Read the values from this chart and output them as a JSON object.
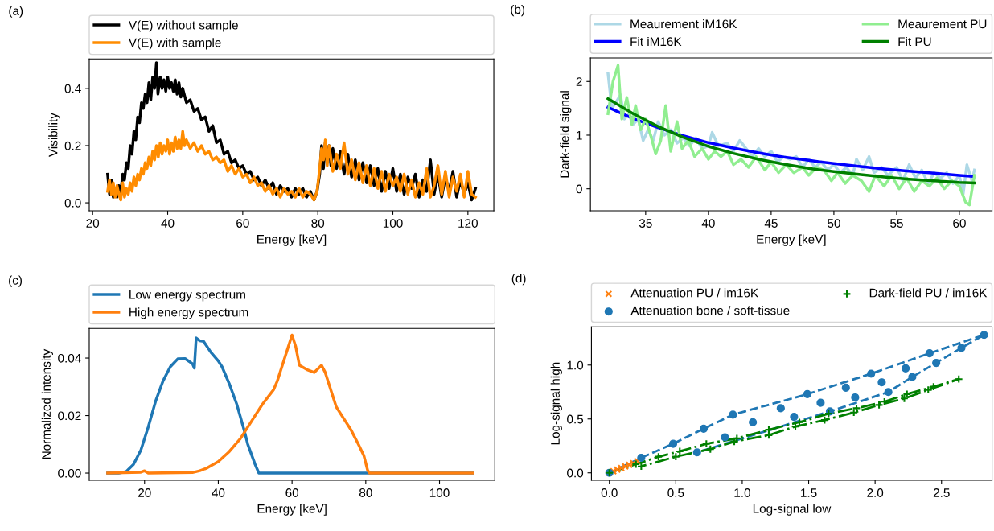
{
  "chart_data": [
    {
      "type": "line",
      "xlabel": "Energy [keV]",
      "ylabel": "Visibility",
      "annotations": [
        "(a)"
      ],
      "legend": "top",
      "grid": false,
      "xlim": [
        19.1,
        126.9
      ],
      "ylim": [
        -0.028,
        0.503
      ],
      "xticks": [
        20,
        40,
        60,
        80,
        100,
        120
      ],
      "yticks": [
        {
          "value": 0,
          "label": "0.0"
        },
        {
          "value": 0.2,
          "label": "0.2"
        },
        {
          "value": 0.4,
          "label": "0.4"
        }
      ],
      "series": [
        {
          "name": "V(E) without sample",
          "color": "#000000",
          "x": [
            24,
            24.5,
            25,
            25.5,
            26,
            26.5,
            27,
            27.5,
            28,
            28.5,
            29,
            29.5,
            30,
            30.5,
            31,
            31.5,
            32,
            32.5,
            33,
            33.5,
            34,
            34.5,
            35,
            35.5,
            36,
            36.5,
            37,
            37.4,
            38,
            38.5,
            39,
            39.5,
            40,
            40.5,
            41,
            41.5,
            42,
            42.5,
            43,
            43.5,
            44,
            45,
            46,
            47,
            48,
            49,
            50,
            51,
            52,
            53,
            54,
            55,
            56,
            57,
            58,
            59,
            60,
            61,
            62,
            63,
            64,
            65,
            66,
            67,
            68,
            69,
            70,
            71,
            72,
            73,
            74,
            75,
            76,
            77,
            78,
            79,
            79.8,
            80.5,
            81,
            81.5,
            82,
            82.5,
            83,
            83.5,
            84,
            85,
            86,
            87,
            88,
            89,
            90,
            91,
            92,
            93,
            94,
            95,
            96,
            97,
            98,
            99,
            100,
            101,
            102,
            103,
            104,
            105,
            106,
            107,
            108,
            109,
            110,
            111,
            112,
            113,
            114,
            115,
            116,
            117,
            118,
            119,
            120,
            121,
            122
          ],
          "values": [
            0.1,
            0.03,
            0.08,
            0.02,
            0.05,
            0.02,
            0.06,
            0.03,
            0.1,
            0.08,
            0.14,
            0.12,
            0.2,
            0.17,
            0.25,
            0.22,
            0.3,
            0.28,
            0.35,
            0.33,
            0.38,
            0.35,
            0.42,
            0.36,
            0.44,
            0.4,
            0.49,
            0.38,
            0.44,
            0.4,
            0.43,
            0.39,
            0.44,
            0.4,
            0.42,
            0.39,
            0.43,
            0.38,
            0.42,
            0.37,
            0.4,
            0.35,
            0.36,
            0.32,
            0.33,
            0.29,
            0.3,
            0.25,
            0.27,
            0.21,
            0.22,
            0.17,
            0.18,
            0.14,
            0.15,
            0.12,
            0.13,
            0.1,
            0.11,
            0.08,
            0.09,
            0.06,
            0.08,
            0.05,
            0.07,
            0.03,
            0.06,
            0.04,
            0.05,
            0.02,
            0.05,
            0.03,
            0.05,
            0.02,
            0.04,
            0.01,
            0.04,
            0.1,
            0.2,
            0.12,
            0.21,
            0.14,
            0.2,
            0.13,
            0.19,
            0.12,
            0.18,
            0.1,
            0.17,
            0.09,
            0.15,
            0.08,
            0.14,
            0.07,
            0.13,
            0.06,
            0.12,
            0.04,
            0.11,
            0.05,
            0.12,
            0.04,
            0.1,
            0.03,
            0.09,
            0.05,
            0.1,
            0.02,
            0.08,
            0.04,
            0.15,
            0.03,
            0.1,
            0.02,
            0.09,
            0.04,
            0.11,
            0.02,
            0.08,
            0.03,
            0.07,
            0.01,
            0.05
          ]
        },
        {
          "name": "V(E) with sample",
          "color": "#ff8c00",
          "x": [
            24,
            24.5,
            25,
            25.5,
            26,
            26.5,
            27,
            27.5,
            28,
            28.5,
            29,
            29.5,
            30,
            30.5,
            31,
            31.5,
            32,
            32.5,
            33,
            33.5,
            34,
            34.5,
            35,
            35.5,
            36,
            36.5,
            37,
            37.5,
            38,
            38.5,
            39,
            39.5,
            40,
            40.5,
            41,
            41.5,
            42,
            42.5,
            43,
            43.5,
            44,
            44.5,
            45,
            46,
            47,
            48,
            49,
            50,
            51,
            52,
            53,
            54,
            55,
            56,
            57,
            58,
            59,
            60,
            61,
            62,
            63,
            64,
            65,
            66,
            67,
            68,
            69,
            70,
            71,
            72,
            73,
            74,
            75,
            76,
            77,
            78,
            79,
            79.8,
            80.5,
            81,
            81.5,
            82,
            82.5,
            83,
            84,
            85,
            86,
            87,
            88,
            89,
            90,
            91,
            92,
            93,
            94,
            95,
            96,
            97,
            98,
            99,
            100,
            101,
            102,
            103,
            104,
            105,
            106,
            107,
            108,
            109,
            110,
            111,
            112,
            113,
            114,
            115,
            116,
            117,
            118,
            119,
            120,
            121,
            122
          ],
          "values": [
            0.04,
            0.08,
            0.03,
            0.07,
            0.02,
            0.06,
            0.03,
            0.01,
            0.07,
            0.02,
            0.05,
            0.03,
            0.07,
            0.04,
            0.09,
            0.06,
            0.1,
            0.08,
            0.12,
            0.1,
            0.14,
            0.12,
            0.16,
            0.13,
            0.18,
            0.15,
            0.2,
            0.16,
            0.21,
            0.17,
            0.2,
            0.18,
            0.22,
            0.17,
            0.21,
            0.18,
            0.23,
            0.19,
            0.22,
            0.19,
            0.25,
            0.2,
            0.22,
            0.19,
            0.21,
            0.18,
            0.2,
            0.17,
            0.18,
            0.15,
            0.16,
            0.14,
            0.15,
            0.11,
            0.13,
            0.1,
            0.12,
            0.09,
            0.1,
            0.07,
            0.09,
            0.06,
            0.07,
            0.04,
            0.06,
            0.03,
            0.05,
            0.02,
            0.05,
            0.03,
            0.04,
            0.02,
            0.05,
            0.02,
            0.04,
            0.03,
            0.01,
            0.04,
            0.12,
            0.19,
            0.15,
            0.22,
            0.13,
            0.2,
            0.11,
            0.17,
            0.12,
            0.21,
            0.1,
            0.15,
            0.08,
            0.14,
            0.07,
            0.13,
            0.06,
            0.12,
            0.05,
            0.11,
            0.04,
            0.1,
            0.06,
            0.09,
            0.04,
            0.1,
            0.03,
            0.08,
            0.02,
            0.07,
            0.03,
            0.12,
            0.02,
            0.06,
            0.13,
            0.03,
            0.11,
            0.02,
            0.09,
            0.04,
            0.1,
            0.02,
            0.11,
            0.03,
            0.02
          ]
        }
      ]
    },
    {
      "type": "line",
      "xlabel": "Energy [keV]",
      "ylabel": "Dark-field signal",
      "annotations": [
        "(b)"
      ],
      "legend": "top",
      "grid": false,
      "xlim": [
        30.6,
        62.6
      ],
      "ylim": [
        -0.41,
        2.44
      ],
      "xticks": [
        35,
        40,
        45,
        50,
        55,
        60
      ],
      "yticks": [
        0,
        1,
        2
      ],
      "series": [
        {
          "name": "Meaurement iM16K",
          "color": "#add8e6",
          "x": [
            32,
            32.3,
            32.6,
            33,
            33.3,
            33.7,
            34,
            34.4,
            34.8,
            35.2,
            35.6,
            36,
            36.5,
            37,
            37.5,
            38,
            38.5,
            39,
            39.5,
            40,
            40.3,
            40.8,
            41.5,
            42,
            42.5,
            43,
            43.5,
            44,
            44.5,
            45,
            45.5,
            46,
            46.5,
            47,
            47.5,
            48,
            48.5,
            49,
            49.5,
            50,
            50.5,
            51,
            51.5,
            51.8,
            52.3,
            52.8,
            53.2,
            53.8,
            54.3,
            55,
            55.5,
            56,
            56.5,
            57,
            57.5,
            58,
            58.5,
            59,
            59.5,
            60,
            60.3,
            60.6,
            61,
            61.2
          ],
          "values": [
            2.15,
            1.5,
            1.6,
            1.75,
            1.3,
            1.4,
            1.2,
            1.3,
            0.9,
            1.1,
            0.9,
            1.25,
            1.0,
            1.1,
            0.85,
            0.95,
            0.8,
            0.95,
            0.75,
            0.8,
            1.05,
            0.8,
            0.85,
            0.7,
            0.9,
            0.75,
            0.6,
            0.75,
            0.6,
            0.7,
            0.5,
            0.6,
            0.55,
            0.6,
            0.4,
            0.55,
            0.4,
            0.5,
            0.35,
            0.45,
            0.3,
            0.4,
            0.25,
            0.55,
            0.35,
            0.6,
            0.3,
            0.4,
            0.25,
            0.4,
            0.15,
            0.45,
            0.2,
            0.35,
            0.1,
            0.3,
            0.2,
            0.3,
            0.1,
            0.25,
            -0.1,
            0.45,
            0.15,
            0.35
          ]
        },
        {
          "name": "Fit iM16K",
          "color": "#0000ff",
          "x": [
            32,
            34,
            36,
            38,
            40,
            42,
            44,
            46,
            48,
            50,
            52,
            54,
            56,
            58,
            60,
            61.2
          ],
          "values": [
            1.52,
            1.31,
            1.14,
            0.99,
            0.86,
            0.76,
            0.67,
            0.59,
            0.53,
            0.47,
            0.42,
            0.37,
            0.33,
            0.29,
            0.25,
            0.23
          ]
        },
        {
          "name": "Meaurement PU",
          "color": "#90ee90",
          "x": [
            32,
            32.4,
            32.8,
            33.1,
            33.5,
            33.9,
            34.2,
            34.6,
            35,
            35.4,
            35.8,
            36.2,
            36.6,
            37,
            37.5,
            37.9,
            38.4,
            38.9,
            39.5,
            40,
            40.5,
            41,
            41.5,
            42,
            42.6,
            43.2,
            43.8,
            44.5,
            45,
            45.6,
            46.2,
            46.8,
            47.5,
            48,
            48.6,
            49.2,
            49.8,
            50.3,
            50.9,
            51.5,
            52.2,
            52.8,
            53.3,
            54,
            54.6,
            55.2,
            55.8,
            56.4,
            57,
            57.6,
            58.2,
            58.8,
            59.4,
            60,
            60.5,
            60.8,
            61.2
          ],
          "values": [
            1.4,
            2.0,
            2.3,
            1.3,
            1.7,
            1.2,
            1.55,
            1.1,
            1.3,
            1.0,
            0.65,
            0.9,
            1.55,
            0.7,
            1.25,
            0.75,
            0.9,
            0.6,
            0.75,
            0.55,
            0.7,
            0.6,
            0.7,
            0.45,
            0.55,
            0.4,
            0.6,
            0.35,
            0.5,
            0.3,
            0.45,
            0.3,
            0.4,
            0.25,
            0.4,
            0.35,
            0.15,
            0.3,
            0.1,
            0.25,
            0.15,
            -0.05,
            0.25,
            0.05,
            0.25,
            0.0,
            0.2,
            -0.05,
            0.15,
            0.05,
            0.2,
            0.0,
            0.15,
            0.05,
            -0.25,
            -0.3,
            0.25
          ]
        },
        {
          "name": "Fit PU",
          "color": "#008000",
          "x": [
            32,
            34,
            36,
            38,
            40,
            42,
            44,
            46,
            48,
            50,
            52,
            54,
            56,
            58,
            60,
            61.2
          ],
          "values": [
            1.68,
            1.4,
            1.16,
            0.96,
            0.79,
            0.66,
            0.55,
            0.46,
            0.38,
            0.32,
            0.27,
            0.22,
            0.18,
            0.15,
            0.12,
            0.11
          ]
        }
      ]
    },
    {
      "type": "line",
      "xlabel": "Energy [keV]",
      "ylabel": "Normalized intensity",
      "annotations": [
        "(c)"
      ],
      "legend": "top",
      "grid": false,
      "xlim": [
        5,
        115
      ],
      "ylim": [
        -0.0025,
        0.0503
      ],
      "xticks": [
        20,
        40,
        60,
        80,
        100
      ],
      "yticks": [
        {
          "value": 0,
          "label": "0.00"
        },
        {
          "value": 0.02,
          "label": "0.02"
        },
        {
          "value": 0.04,
          "label": "0.04"
        }
      ],
      "series": [
        {
          "name": "Low energy spectrum",
          "color": "#1f77b4",
          "x": [
            10,
            13,
            15,
            17,
            19,
            21,
            23,
            25,
            27,
            29,
            31,
            33,
            33.5,
            34,
            35,
            36,
            38,
            40,
            41,
            43,
            45,
            47,
            48,
            50,
            51,
            109
          ],
          "values": [
            0,
            0,
            0.0005,
            0.003,
            0.008,
            0.016,
            0.025,
            0.032,
            0.037,
            0.0397,
            0.0398,
            0.038,
            0.0365,
            0.047,
            0.046,
            0.0458,
            0.042,
            0.039,
            0.037,
            0.031,
            0.024,
            0.015,
            0.01,
            0.003,
            0,
            0
          ]
        },
        {
          "name": "High energy spectrum",
          "color": "#ff7f0e",
          "x": [
            10,
            19,
            20,
            21,
            33,
            35,
            37,
            40,
            43,
            46,
            49,
            52,
            55,
            56,
            58,
            60,
            61,
            62,
            64,
            66,
            68,
            69,
            72,
            74,
            76,
            78,
            79.5,
            80.5,
            81,
            109
          ],
          "values": [
            0,
            0.0003,
            0.0008,
            0,
            0.0002,
            0.0008,
            0.0018,
            0.004,
            0.0075,
            0.012,
            0.018,
            0.024,
            0.029,
            0.032,
            0.04,
            0.048,
            0.044,
            0.0375,
            0.036,
            0.035,
            0.0375,
            0.035,
            0.023,
            0.019,
            0.015,
            0.01,
            0.006,
            0.001,
            0,
            0
          ]
        }
      ]
    },
    {
      "type": "scatter",
      "xlabel": "Log-signal low",
      "ylabel": "Log-signal high",
      "annotations": [
        "(d)"
      ],
      "legend": "top",
      "grid": false,
      "xlim": [
        -0.135,
        2.88
      ],
      "ylim": [
        -0.069,
        1.355
      ],
      "xticks": [
        {
          "value": 0,
          "label": "0.0"
        },
        {
          "value": 0.5,
          "label": "0.5"
        },
        {
          "value": 1,
          "label": "1.0"
        },
        {
          "value": 1.5,
          "label": "1.5"
        },
        {
          "value": 2,
          "label": "2.0"
        },
        {
          "value": 2.5,
          "label": "2.5"
        }
      ],
      "yticks": [
        {
          "value": 0,
          "label": "0.0"
        },
        {
          "value": 0.5,
          "label": "0.5"
        },
        {
          "value": 1,
          "label": "1.0"
        }
      ],
      "series": [
        {
          "type": "line",
          "color": "#1f77b4",
          "line_style": "dashed",
          "marker": "none",
          "x": [
            0,
            0.24,
            0.48,
            0.71,
            0.93,
            1.49,
            1.97,
            2.41,
            2.82,
            2.65,
            2.28,
            2.1,
            1.66,
            0.66
          ],
          "values": [
            0,
            0.14,
            0.27,
            0.41,
            0.54,
            0.73,
            0.92,
            1.11,
            1.28,
            1.16,
            0.89,
            0.75,
            0.57,
            0.19
          ]
        },
        {
          "type": "line",
          "color": "#008000",
          "line_style": "dashdot",
          "marker": "none",
          "x": [
            0,
            0.2,
            0.37,
            0.53,
            0.73,
            0.96,
            1.2,
            1.43,
            1.65,
            1.86,
            2.07,
            2.24,
            2.44,
            2.63,
            2.4,
            2.22,
            2.03,
            1.84,
            1.62,
            1.4,
            1.2,
            0.94,
            0.76,
            0.5,
            0.24
          ],
          "values": [
            0,
            0.08,
            0.15,
            0.2,
            0.27,
            0.32,
            0.4,
            0.47,
            0.55,
            0.6,
            0.66,
            0.73,
            0.8,
            0.87,
            0.77,
            0.69,
            0.63,
            0.56,
            0.49,
            0.43,
            0.35,
            0.29,
            0.22,
            0.15,
            0.06
          ]
        },
        {
          "name": "Attenuation PU / im16K",
          "color": "#ff7f0e",
          "marker": "cross",
          "x": [
            0,
            0.03,
            0.06,
            0.09,
            0.12,
            0.15,
            0.18,
            0.21
          ],
          "values": [
            0,
            0.015,
            0.03,
            0.045,
            0.06,
            0.075,
            0.09,
            0.11
          ]
        },
        {
          "name": "Attenuation bone / soft-tissue",
          "color": "#1f77b4",
          "marker": "circle",
          "x": [
            0,
            0.24,
            0.48,
            0.71,
            0.93,
            1.49,
            1.97,
            2.41,
            2.82,
            1.08,
            1.29,
            1.59,
            1.78,
            2.05,
            2.23,
            2.46,
            0.66,
            0.87,
            1.39,
            1.66,
            1.85,
            2.1,
            2.28,
            2.65
          ],
          "values": [
            0,
            0.14,
            0.27,
            0.41,
            0.54,
            0.73,
            0.92,
            1.11,
            1.28,
            0.47,
            0.6,
            0.65,
            0.79,
            0.84,
            0.97,
            1.02,
            0.19,
            0.33,
            0.52,
            0.57,
            0.7,
            0.75,
            0.89,
            1.16
          ]
        },
        {
          "name": "Dark-field PU / im16K",
          "color": "#008000",
          "marker": "plus",
          "x": [
            0,
            0.2,
            0.37,
            0.53,
            0.73,
            0.96,
            1.2,
            1.43,
            1.65,
            1.86,
            2.07,
            2.24,
            2.44,
            2.63,
            0.24,
            0.5,
            0.76,
            0.94,
            1.2,
            1.4,
            1.62,
            1.84,
            2.03,
            2.22,
            2.4
          ],
          "values": [
            0,
            0.08,
            0.15,
            0.2,
            0.27,
            0.32,
            0.4,
            0.47,
            0.55,
            0.6,
            0.66,
            0.73,
            0.8,
            0.87,
            0.06,
            0.15,
            0.22,
            0.29,
            0.35,
            0.43,
            0.49,
            0.56,
            0.63,
            0.69,
            0.77
          ]
        }
      ]
    }
  ]
}
